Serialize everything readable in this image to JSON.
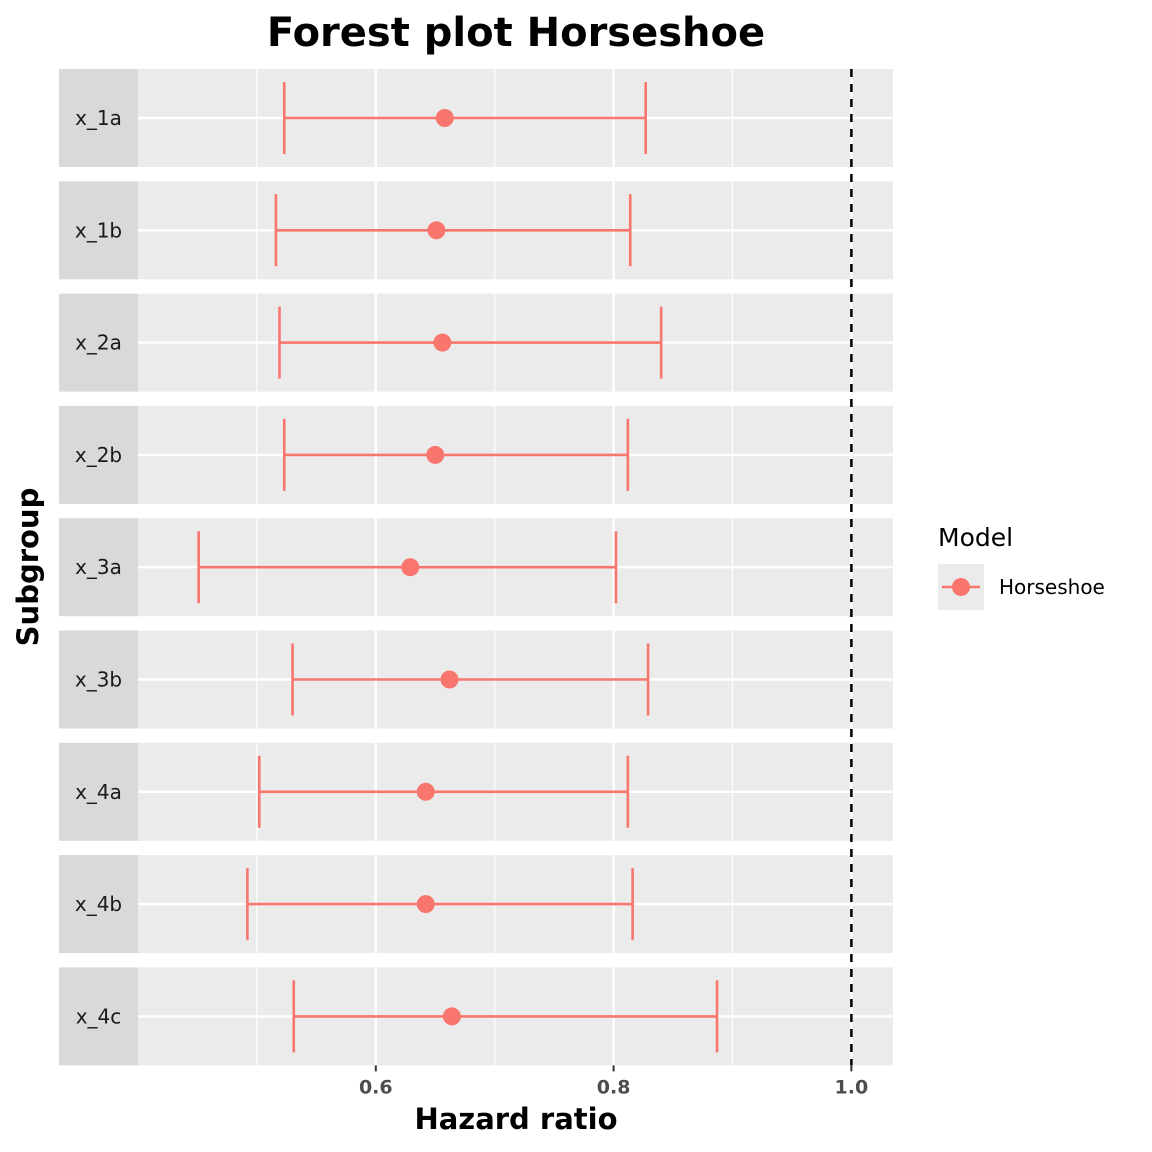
{
  "chart_data": {
    "type": "forest",
    "title": "Forest plot Horseshoe",
    "xlabel": "Hazard ratio",
    "ylabel": "Subgroup",
    "xlim": [
      0.4,
      1.035
    ],
    "xticks": [
      0.6,
      0.8,
      1.0
    ],
    "xtick_labels": [
      "0.6",
      "0.8",
      "1.0"
    ],
    "reference_line": 1.0,
    "legend": {
      "title": "Model",
      "position": "right",
      "entries": [
        "Horseshoe"
      ]
    },
    "series": [
      {
        "name": "Horseshoe",
        "color": "#F8766D",
        "points": [
          {
            "subgroup": "x_1a",
            "estimate": 0.658,
            "lower": 0.523,
            "upper": 0.827
          },
          {
            "subgroup": "x_1b",
            "estimate": 0.651,
            "lower": 0.516,
            "upper": 0.814
          },
          {
            "subgroup": "x_2a",
            "estimate": 0.656,
            "lower": 0.519,
            "upper": 0.84
          },
          {
            "subgroup": "x_2b",
            "estimate": 0.65,
            "lower": 0.523,
            "upper": 0.812
          },
          {
            "subgroup": "x_3a",
            "estimate": 0.629,
            "lower": 0.451,
            "upper": 0.802
          },
          {
            "subgroup": "x_3b",
            "estimate": 0.662,
            "lower": 0.53,
            "upper": 0.829
          },
          {
            "subgroup": "x_4a",
            "estimate": 0.642,
            "lower": 0.502,
            "upper": 0.812
          },
          {
            "subgroup": "x_4b",
            "estimate": 0.642,
            "lower": 0.492,
            "upper": 0.816
          },
          {
            "subgroup": "x_4c",
            "estimate": 0.664,
            "lower": 0.531,
            "upper": 0.887
          }
        ]
      }
    ]
  }
}
